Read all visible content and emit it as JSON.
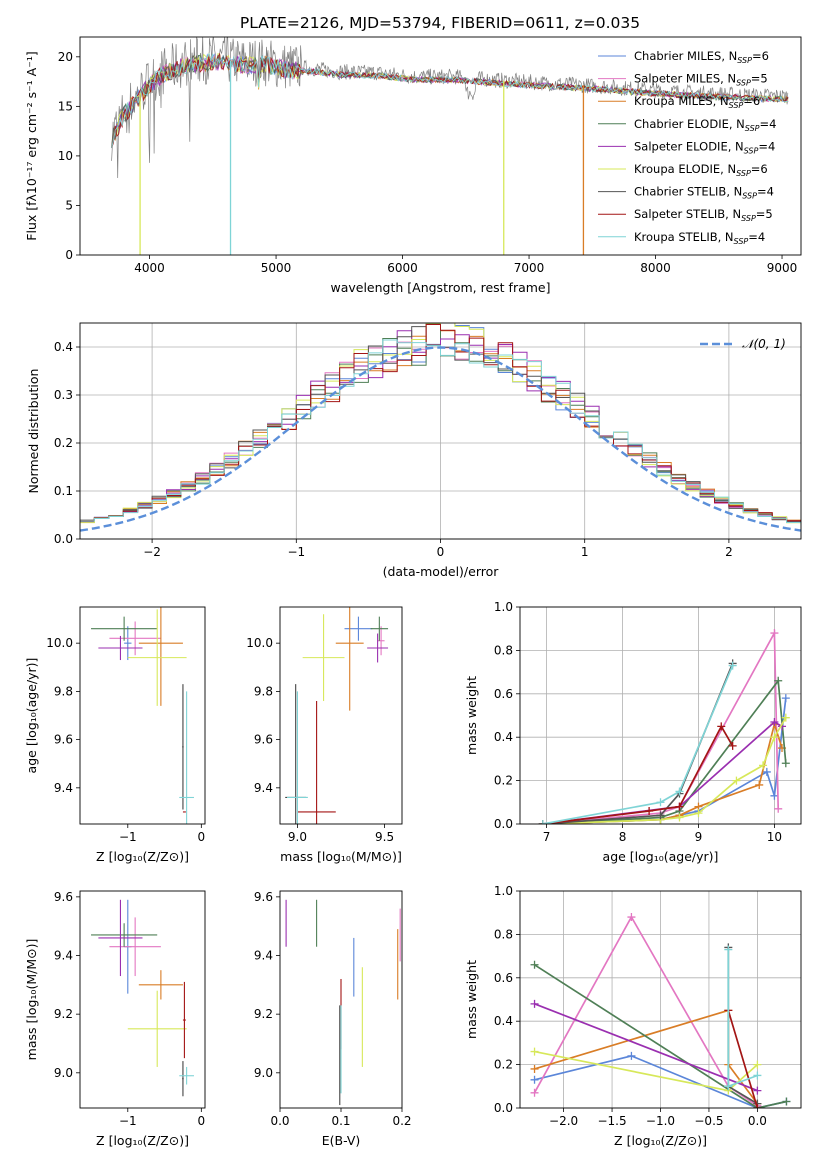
{
  "figure_title": "PLATE=2126, MJD=53794, FIBERID=0611, z=0.035",
  "colors": {
    "chabrier_miles": "#5b86d9",
    "salpeter_miles": "#e377c2",
    "kroupa_miles": "#d97d26",
    "chabrier_elodie": "#4f7f56",
    "salpeter_elodie": "#9a2fb0",
    "kroupa_elodie": "#d7e85a",
    "chabrier_stelib": "#7f7f7f",
    "salpeter_stelib": "#a31515",
    "kroupa_stelib": "#7fd4d6",
    "normal": "#5b8fd9"
  },
  "legend": [
    {
      "label": "Chabrier MILES, N",
      "sub": "SSP",
      "tail": "=6",
      "color": "#5b86d9"
    },
    {
      "label": "Salpeter MILES, N",
      "sub": "SSP",
      "tail": "=5",
      "color": "#e377c2"
    },
    {
      "label": "Kroupa MILES, N",
      "sub": "SSP",
      "tail": "=6",
      "color": "#d97d26"
    },
    {
      "label": "Chabrier ELODIE, N",
      "sub": "SSP",
      "tail": "=4",
      "color": "#4f7f56"
    },
    {
      "label": "Salpeter ELODIE, N",
      "sub": "SSP",
      "tail": "=4",
      "color": "#9a2fb0"
    },
    {
      "label": "Kroupa ELODIE, N",
      "sub": "SSP",
      "tail": "=6",
      "color": "#d7e85a"
    },
    {
      "label": "Chabrier STELIB, N",
      "sub": "SSP",
      "tail": "=4",
      "color": "#555555"
    },
    {
      "label": "Salpeter STELIB, N",
      "sub": "SSP",
      "tail": "=5",
      "color": "#a31515"
    },
    {
      "label": "Kroupa STELIB, N",
      "sub": "SSP",
      "tail": "=4",
      "color": "#7fd4d6"
    }
  ],
  "chart_data": [
    {
      "type": "line",
      "name": "spectrum",
      "xlabel": "wavelength [Angstrom, rest frame]",
      "ylabel": "Flux [fλ10⁻¹⁷ erg cm⁻² s⁻¹ A⁻¹]",
      "xlim": [
        3450,
        9150
      ],
      "ylim": [
        0,
        22
      ],
      "xticks": [
        4000,
        5000,
        6000,
        7000,
        8000,
        9000
      ],
      "yticks": [
        0,
        5,
        10,
        15,
        20
      ],
      "data_x": [
        3700,
        3800,
        3900,
        4000,
        4100,
        4300,
        4500,
        4700,
        4900,
        5100,
        5300,
        5500,
        5800,
        6100,
        6400,
        6800,
        7200,
        7600,
        8000,
        8400,
        8800,
        9050
      ],
      "data_y": [
        12.0,
        14.5,
        16.0,
        17.5,
        18.5,
        19.5,
        19.8,
        19.5,
        19.5,
        19.0,
        18.8,
        18.5,
        18.4,
        18.0,
        18.0,
        17.6,
        17.3,
        17.0,
        16.6,
        16.3,
        16.1,
        16.0
      ],
      "model_dropouts": [
        {
          "x": 3925,
          "to": 0,
          "color": "#d7e85a"
        },
        {
          "x": 4640,
          "to": 0,
          "color": "#7fd4d6"
        },
        {
          "x": 6800,
          "to": 0,
          "color": "#d7e85a"
        },
        {
          "x": 7430,
          "to": 0,
          "color": "#d97d26"
        }
      ]
    },
    {
      "type": "step",
      "name": "residuals",
      "xlabel": "(data-model)/error",
      "ylabel": "Normed distribution",
      "xlim": [
        -2.5,
        2.5
      ],
      "ylim": [
        0,
        0.45
      ],
      "xticks": [
        -2,
        -1,
        0,
        1,
        2
      ],
      "xtick_labels": [
        "−2",
        "−1",
        "0",
        "1",
        "2"
      ],
      "yticks": [
        0.0,
        0.1,
        0.2,
        0.3,
        0.4
      ],
      "curve_label": "𝒩(0, 1)",
      "bin_width": 0.1
    },
    {
      "type": "scatter",
      "name": "age-vs-Z",
      "xlabel": "Z [log₁₀(Z/Z⊙)]",
      "ylabel": "age  [log₁₀(age/yr)]",
      "xlim": [
        -1.65,
        0.05
      ],
      "ylim": [
        9.25,
        10.15
      ],
      "xticks": [
        -1,
        0
      ],
      "xtick_labels": [
        "−1",
        "0"
      ],
      "yticks": [
        9.4,
        9.6,
        9.8,
        10.0
      ],
      "yticks_labels": [
        "9.4",
        "9.6",
        "9.8",
        "10.0"
      ],
      "points": [
        {
          "x": -1.0,
          "y": 10.0,
          "xerr": 0.05,
          "yerr": 0.07,
          "c": "#5b86d9"
        },
        {
          "x": -0.9,
          "y": 10.02,
          "xerr": 0.35,
          "yerr": 0.07,
          "c": "#e377c2"
        },
        {
          "x": -0.55,
          "y": 10.0,
          "xerr": 0.3,
          "yerr": 0.26,
          "c": "#d97d26"
        },
        {
          "x": -1.05,
          "y": 10.06,
          "xerr": 0.45,
          "yerr": 0.05,
          "c": "#4f7f56"
        },
        {
          "x": -1.1,
          "y": 9.98,
          "xerr": 0.3,
          "yerr": 0.05,
          "c": "#9a2fb0"
        },
        {
          "x": -0.6,
          "y": 9.94,
          "xerr": 0.4,
          "yerr": 0.2,
          "c": "#d7e85a"
        },
        {
          "x": -0.25,
          "y": 9.57,
          "xerr": 0.01,
          "yerr": 0.26,
          "c": "#444444"
        },
        {
          "x": -0.23,
          "y": 9.3,
          "xerr": 0.02,
          "yerr": 0.0,
          "c": "#a31515"
        },
        {
          "x": -0.2,
          "y": 9.36,
          "xerr": 0.1,
          "yerr": 0.44,
          "c": "#7fd4d6"
        }
      ]
    },
    {
      "type": "scatter",
      "name": "age-vs-mass",
      "xlabel": "mass [log₁₀(M/M⊙)]",
      "ylabel": "",
      "xlim": [
        8.9,
        9.6
      ],
      "ylim": [
        9.25,
        10.15
      ],
      "xticks": [
        9.0,
        9.5
      ],
      "xtick_labels": [
        "9.0",
        "9.5"
      ],
      "yticks": [
        9.4,
        9.6,
        9.8,
        10.0
      ],
      "yticks_labels": [
        "9.4",
        "9.6",
        "9.8",
        "10.0"
      ],
      "points": [
        {
          "x": 9.35,
          "y": 10.06,
          "xerr": 0.08,
          "yerr": 0.05,
          "c": "#5b86d9"
        },
        {
          "x": 9.48,
          "y": 10.01,
          "xerr": 0.02,
          "yerr": 0.06,
          "c": "#e377c2"
        },
        {
          "x": 9.3,
          "y": 10.0,
          "xerr": 0.08,
          "yerr": 0.28,
          "c": "#d97d26"
        },
        {
          "x": 9.47,
          "y": 10.06,
          "xerr": 0.05,
          "yerr": 0.05,
          "c": "#4f7f56"
        },
        {
          "x": 9.46,
          "y": 9.98,
          "xerr": 0.06,
          "yerr": 0.06,
          "c": "#9a2fb0"
        },
        {
          "x": 9.15,
          "y": 9.94,
          "xerr": 0.12,
          "yerr": 0.18,
          "c": "#d7e85a"
        },
        {
          "x": 8.99,
          "y": 9.36,
          "xerr": 0.06,
          "yerr": 0.47,
          "c": "#444444"
        },
        {
          "x": 9.11,
          "y": 9.3,
          "xerr": 0.11,
          "yerr": 0.46,
          "c": "#a31515"
        },
        {
          "x": 9.0,
          "y": 9.36,
          "xerr": 0.06,
          "yerr": 0.44,
          "c": "#7fd4d6"
        }
      ]
    },
    {
      "type": "line",
      "name": "mass-weight-vs-age",
      "xlabel": "age  [log₁₀(age/yr)]",
      "ylabel": "mass weight",
      "xlim": [
        6.65,
        10.35
      ],
      "ylim": [
        0,
        1.0
      ],
      "xticks": [
        7,
        8,
        9,
        10
      ],
      "xtick_labels": [
        "7",
        "8",
        "9",
        "10"
      ],
      "yticks": [
        0.0,
        0.2,
        0.4,
        0.6,
        0.8,
        1.0
      ],
      "yticks_labels": [
        "0.0",
        "0.2",
        "0.4",
        "0.6",
        "0.8",
        "1.0"
      ],
      "series": [
        {
          "c": "#5b86d9",
          "x": [
            6.95,
            8.5,
            8.75,
            9.0,
            9.9,
            10.0,
            10.15
          ],
          "y": [
            0.0,
            0.02,
            0.04,
            0.06,
            0.24,
            0.13,
            0.58
          ]
        },
        {
          "c": "#e377c2",
          "x": [
            6.95,
            8.5,
            8.75,
            10.0,
            10.05
          ],
          "y": [
            0.0,
            0.05,
            0.08,
            0.88,
            0.07
          ]
        },
        {
          "c": "#d97d26",
          "x": [
            6.95,
            8.5,
            8.75,
            9.0,
            9.8,
            10.0,
            10.1
          ],
          "y": [
            0.0,
            0.02,
            0.04,
            0.08,
            0.18,
            0.46,
            0.35
          ]
        },
        {
          "c": "#4f7f56",
          "x": [
            6.95,
            8.5,
            8.75,
            10.05,
            10.15
          ],
          "y": [
            0.0,
            0.03,
            0.06,
            0.66,
            0.28
          ]
        },
        {
          "c": "#9a2fb0",
          "x": [
            6.95,
            8.75,
            10.0,
            10.1
          ],
          "y": [
            0.0,
            0.08,
            0.47,
            0.45
          ]
        },
        {
          "c": "#d7e85a",
          "x": [
            6.95,
            8.5,
            8.75,
            9.0,
            9.5,
            9.85,
            10.0,
            10.15
          ],
          "y": [
            0.0,
            0.02,
            0.03,
            0.05,
            0.2,
            0.27,
            0.4,
            0.49
          ]
        },
        {
          "c": "#555555",
          "x": [
            6.95,
            8.5,
            8.75,
            9.45
          ],
          "y": [
            0.0,
            0.04,
            0.14,
            0.74
          ]
        },
        {
          "c": "#a31515",
          "x": [
            6.95,
            8.35,
            8.75,
            9.3,
            9.45
          ],
          "y": [
            0.0,
            0.06,
            0.08,
            0.45,
            0.36
          ]
        },
        {
          "c": "#7fd4d6",
          "x": [
            6.95,
            8.5,
            8.75,
            9.45
          ],
          "y": [
            0.0,
            0.1,
            0.15,
            0.73
          ]
        }
      ]
    },
    {
      "type": "scatter",
      "name": "mass-vs-Z",
      "xlabel": "Z [log₁₀(Z/Z⊙)]",
      "ylabel": "mass [log₁₀(M/M⊙)]",
      "xlim": [
        -1.65,
        0.05
      ],
      "ylim": [
        8.88,
        9.62
      ],
      "xticks": [
        -1,
        0
      ],
      "xtick_labels": [
        "−1",
        "0"
      ],
      "yticks": [
        9.0,
        9.2,
        9.4,
        9.6
      ],
      "yticks_labels": [
        "9.0",
        "9.2",
        "9.4",
        "9.6"
      ],
      "points": [
        {
          "x": -1.0,
          "y": 9.43,
          "xerr": 0.05,
          "yerr": 0.16,
          "c": "#5b86d9"
        },
        {
          "x": -0.9,
          "y": 9.43,
          "xerr": 0.35,
          "yerr": 0.1,
          "c": "#e377c2"
        },
        {
          "x": -0.55,
          "y": 9.3,
          "xerr": 0.3,
          "yerr": 0.05,
          "c": "#d97d26"
        },
        {
          "x": -1.05,
          "y": 9.47,
          "xerr": 0.45,
          "yerr": 0.04,
          "c": "#4f7f56"
        },
        {
          "x": -1.1,
          "y": 9.46,
          "xerr": 0.3,
          "yerr": 0.13,
          "c": "#9a2fb0"
        },
        {
          "x": -0.6,
          "y": 9.15,
          "xerr": 0.4,
          "yerr": 0.13,
          "c": "#d7e85a"
        },
        {
          "x": -0.25,
          "y": 8.98,
          "xerr": 0.01,
          "yerr": 0.06,
          "c": "#444444"
        },
        {
          "x": -0.23,
          "y": 9.18,
          "xerr": 0.02,
          "yerr": 0.13,
          "c": "#a31515"
        },
        {
          "x": -0.2,
          "y": 8.99,
          "xerr": 0.1,
          "yerr": 0.03,
          "c": "#7fd4d6"
        }
      ]
    },
    {
      "type": "scatter",
      "name": "mass-vs-ebv",
      "xlabel": "E(B-V)",
      "ylabel": "",
      "xlim": [
        0.0,
        0.2
      ],
      "ylim": [
        8.88,
        9.62
      ],
      "xticks": [
        0.0,
        0.1,
        0.2
      ],
      "xtick_labels": [
        "0.0",
        "0.1",
        "0.2"
      ],
      "yticks": [
        9.0,
        9.2,
        9.4,
        9.6
      ],
      "yticks_labels": [
        "9.0",
        "9.2",
        "9.4",
        "9.6"
      ],
      "points": [
        {
          "x": 0.121,
          "y": 9.36,
          "xerr": 0.0,
          "yerr": 0.1,
          "c": "#5b86d9"
        },
        {
          "x": 0.197,
          "y": 9.47,
          "xerr": 0.0,
          "yerr": 0.09,
          "c": "#e377c2"
        },
        {
          "x": 0.193,
          "y": 9.37,
          "xerr": 0.0,
          "yerr": 0.12,
          "c": "#d97d26"
        },
        {
          "x": 0.06,
          "y": 9.51,
          "xerr": 0.0,
          "yerr": 0.08,
          "c": "#4f7f56"
        },
        {
          "x": 0.01,
          "y": 9.51,
          "xerr": 0.0,
          "yerr": 0.08,
          "c": "#9a2fb0"
        },
        {
          "x": 0.135,
          "y": 9.19,
          "xerr": 0.0,
          "yerr": 0.17,
          "c": "#d7e85a"
        },
        {
          "x": 0.098,
          "y": 9.06,
          "xerr": 0.0,
          "yerr": 0.17,
          "c": "#444444"
        },
        {
          "x": 0.1,
          "y": 9.2,
          "xerr": 0.0,
          "yerr": 0.12,
          "c": "#a31515"
        },
        {
          "x": 0.1,
          "y": 9.08,
          "xerr": 0.0,
          "yerr": 0.15,
          "c": "#7fd4d6"
        }
      ]
    },
    {
      "type": "line",
      "name": "mass-weight-vs-Z",
      "xlabel": "Z [log₁₀(Z/Z⊙)]",
      "ylabel": "mass weight",
      "xlim": [
        -2.45,
        0.45
      ],
      "ylim": [
        0,
        1.0
      ],
      "xticks": [
        -2.0,
        -1.5,
        -1.0,
        -0.5,
        0.0
      ],
      "xtick_labels": [
        "−2.0",
        "−1.5",
        "−1.0",
        "−0.5",
        "0.0"
      ],
      "yticks": [
        0.0,
        0.2,
        0.4,
        0.6,
        0.8,
        1.0
      ],
      "yticks_labels": [
        "0.0",
        "0.2",
        "0.4",
        "0.6",
        "0.8",
        "1.0"
      ],
      "series": [
        {
          "c": "#5b86d9",
          "x": [
            -2.3,
            -1.3,
            0.0,
            0.3
          ],
          "y": [
            0.13,
            0.24,
            0.0,
            0.03
          ]
        },
        {
          "c": "#e377c2",
          "x": [
            -2.3,
            -1.3,
            -0.3,
            0.0
          ],
          "y": [
            0.07,
            0.88,
            0.1,
            0.01
          ]
        },
        {
          "c": "#d97d26",
          "x": [
            -2.3,
            -0.3,
            -0.3,
            0.0
          ],
          "y": [
            0.18,
            0.45,
            0.2,
            0.02
          ]
        },
        {
          "c": "#4f7f56",
          "x": [
            -2.3,
            0.0,
            0.3
          ],
          "y": [
            0.66,
            0.0,
            0.03
          ]
        },
        {
          "c": "#9a2fb0",
          "x": [
            -2.3,
            0.0
          ],
          "y": [
            0.48,
            0.08
          ]
        },
        {
          "c": "#d7e85a",
          "x": [
            -2.3,
            -0.3,
            0.0
          ],
          "y": [
            0.26,
            0.08,
            0.2
          ]
        },
        {
          "c": "#555555",
          "x": [
            -0.3,
            -0.3,
            0.0
          ],
          "y": [
            0.74,
            0.1,
            0.02
          ]
        },
        {
          "c": "#a31515",
          "x": [
            -0.3,
            0.0
          ],
          "y": [
            0.45,
            0.0
          ]
        },
        {
          "c": "#7fd4d6",
          "x": [
            -0.3,
            -0.3,
            0.0
          ],
          "y": [
            0.73,
            0.1,
            0.15
          ]
        }
      ]
    }
  ]
}
